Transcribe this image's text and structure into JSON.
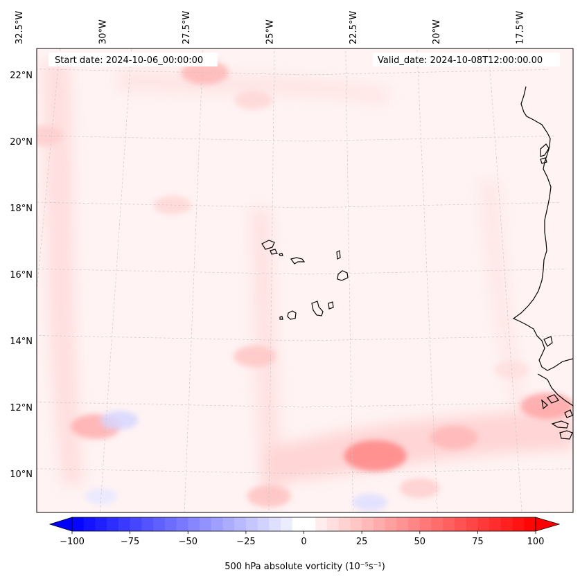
{
  "header": {
    "start_date": "Start date: 2024-10-06_00:00:00",
    "valid_date": "Valid_date: 2024-10-08T12:00:00.00"
  },
  "longitude_labels": [
    {
      "lon": -32.5,
      "text": "32.5°W"
    },
    {
      "lon": -30.0,
      "text": "30°W"
    },
    {
      "lon": -27.5,
      "text": "27.5°W"
    },
    {
      "lon": -25.0,
      "text": "25°W"
    },
    {
      "lon": -22.5,
      "text": "22.5°W"
    },
    {
      "lon": -20.0,
      "text": "20°W"
    },
    {
      "lon": -17.5,
      "text": "17.5°W"
    }
  ],
  "latitude_labels": [
    {
      "lat": 22,
      "text": "22°N"
    },
    {
      "lat": 20,
      "text": "20°N"
    },
    {
      "lat": 18,
      "text": "18°N"
    },
    {
      "lat": 16,
      "text": "16°N"
    },
    {
      "lat": 14,
      "text": "14°N"
    },
    {
      "lat": 12,
      "text": "12°N"
    },
    {
      "lat": 10,
      "text": "10°N"
    }
  ],
  "colorbar": {
    "label": "500 hPa absolute vorticity (10⁻⁵s⁻¹)",
    "min": -100,
    "max": 100,
    "step": 5,
    "ticks": [
      {
        "value": -100,
        "text": "−100"
      },
      {
        "value": -75,
        "text": "−75"
      },
      {
        "value": -50,
        "text": "−50"
      },
      {
        "value": -25,
        "text": "−25"
      },
      {
        "value": 0,
        "text": "0"
      },
      {
        "value": 25,
        "text": "25"
      },
      {
        "value": 50,
        "text": "50"
      },
      {
        "value": 75,
        "text": "75"
      },
      {
        "value": 100,
        "text": "100"
      }
    ],
    "colormap": "bwr",
    "extend": "both"
  },
  "vorticity_features": [
    {
      "lon": -27.4,
      "lat": 22.0,
      "value": 18
    },
    {
      "lon": -25.7,
      "lat": 21.2,
      "value": 10
    },
    {
      "lon": -32.8,
      "lat": 20.0,
      "value": 12
    },
    {
      "lon": -28.3,
      "lat": 18.0,
      "value": 10
    },
    {
      "lon": -25.5,
      "lat": 13.5,
      "value": 14
    },
    {
      "lon": -30.3,
      "lat": 11.3,
      "value": 20
    },
    {
      "lon": -29.6,
      "lat": 11.5,
      "value": -10
    },
    {
      "lon": -21.8,
      "lat": 10.5,
      "value": 30
    },
    {
      "lon": -19.4,
      "lat": 11.0,
      "value": 18
    },
    {
      "lon": -16.5,
      "lat": 11.9,
      "value": 22
    },
    {
      "lon": -25.0,
      "lat": 9.3,
      "value": 15
    },
    {
      "lon": -20.5,
      "lat": 9.5,
      "value": 12
    },
    {
      "lon": -22.0,
      "lat": 9.1,
      "value": -8
    },
    {
      "lon": -30.0,
      "lat": 9.2,
      "value": -6
    },
    {
      "lon": -17.5,
      "lat": 13.0,
      "value": 8
    }
  ],
  "coastline_name": "West Africa coastline",
  "islands_name": "Cabo Verde islands"
}
